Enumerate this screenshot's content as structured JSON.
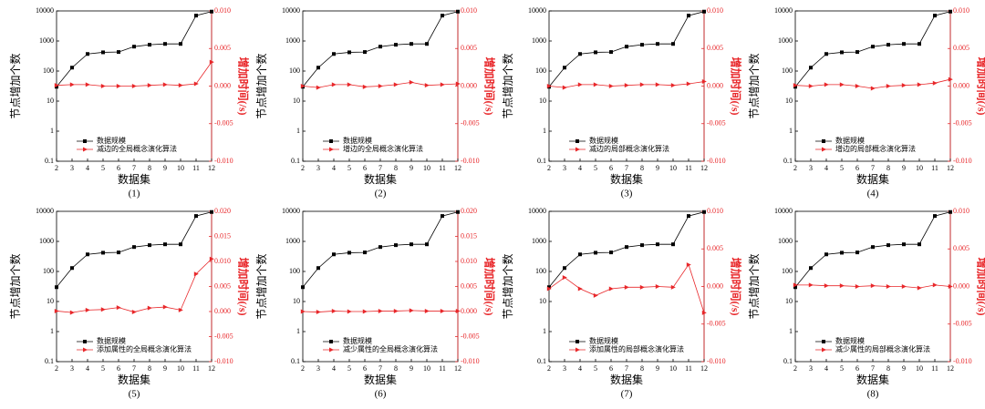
{
  "chart_data": [
    {
      "type": "line",
      "caption": "(1)",
      "xlabel": "数据集",
      "ylabel": "节点增加个数",
      "y2label": "增加时间(/s)",
      "log_y": true,
      "legend": "lower left",
      "x": [
        2,
        3,
        4,
        5,
        6,
        7,
        8,
        9,
        10,
        11,
        12
      ],
      "xlim": [
        2,
        12
      ],
      "xticks": [
        2,
        3,
        4,
        5,
        6,
        7,
        8,
        9,
        10,
        11,
        12
      ],
      "ylim": [
        0.1,
        10000
      ],
      "yticks": [
        0.1,
        1,
        10,
        100,
        1000,
        10000
      ],
      "y2lim": [
        -0.01,
        0.01
      ],
      "y2ticks": [
        {
          "value": -0.01,
          "label": "-0.010"
        },
        {
          "value": -0.005,
          "label": "-0.005"
        },
        {
          "value": 0,
          "label": "0.000"
        },
        {
          "value": 0.005,
          "label": "0.005"
        },
        {
          "value": 0.01,
          "label": "0.010"
        }
      ],
      "series": [
        {
          "name": "数据规模",
          "color": "#000000",
          "values": [
            30,
            130,
            370,
            420,
            430,
            650,
            750,
            800,
            800,
            7000,
            9500
          ]
        },
        {
          "name": "减边的全局概念演化算法",
          "color": "#e8272a",
          "axis": "y2",
          "values": [
            0.0001,
            0.0002,
            0.0002,
            0.0,
            0.0,
            0.0,
            0.0001,
            0.0002,
            0.0001,
            0.0003,
            0.0032
          ]
        }
      ]
    },
    {
      "type": "line",
      "caption": "(2)",
      "xlabel": "数据集",
      "ylabel": "节点增加个数",
      "y2label": "增加时间(/s)",
      "log_y": true,
      "legend": "lower left",
      "x": [
        2,
        3,
        4,
        5,
        6,
        7,
        8,
        9,
        10,
        11,
        12
      ],
      "xlim": [
        2,
        12
      ],
      "xticks": [
        2,
        3,
        4,
        5,
        6,
        7,
        8,
        9,
        10,
        11,
        12
      ],
      "ylim": [
        0.1,
        10000
      ],
      "yticks": [
        0.1,
        1,
        10,
        100,
        1000,
        10000
      ],
      "y2lim": [
        -0.01,
        0.01
      ],
      "y2ticks": [
        {
          "value": -0.01,
          "label": "-0.010"
        },
        {
          "value": -0.005,
          "label": "-0.005"
        },
        {
          "value": 0,
          "label": "0.000"
        },
        {
          "value": 0.005,
          "label": "0.005"
        },
        {
          "value": 0.01,
          "label": "0.010"
        }
      ],
      "series": [
        {
          "name": "数据规模",
          "color": "#000000",
          "values": [
            30,
            130,
            370,
            420,
            430,
            650,
            750,
            800,
            800,
            7000,
            9500
          ]
        },
        {
          "name": "增边的全局概念演化算法",
          "color": "#e8272a",
          "axis": "y2",
          "values": [
            0.0,
            -0.0002,
            0.0002,
            0.0002,
            -0.0001,
            0.0,
            0.0002,
            0.0005,
            0.0001,
            0.0002,
            0.0003
          ]
        }
      ]
    },
    {
      "type": "line",
      "caption": "(3)",
      "xlabel": "数据集",
      "ylabel": "节点增加个数",
      "y2label": "增加时间(/s)",
      "log_y": true,
      "legend": "lower left",
      "x": [
        2,
        3,
        4,
        5,
        6,
        7,
        8,
        9,
        10,
        11,
        12
      ],
      "xlim": [
        2,
        12
      ],
      "xticks": [
        2,
        3,
        4,
        5,
        6,
        7,
        8,
        9,
        10,
        11,
        12
      ],
      "ylim": [
        0.1,
        10000
      ],
      "yticks": [
        0.1,
        1,
        10,
        100,
        1000,
        10000
      ],
      "y2lim": [
        -0.01,
        0.01
      ],
      "y2ticks": [
        {
          "value": -0.01,
          "label": "-0.010"
        },
        {
          "value": -0.005,
          "label": "-0.005"
        },
        {
          "value": 0,
          "label": "0.000"
        },
        {
          "value": 0.005,
          "label": "0.005"
        },
        {
          "value": 0.01,
          "label": "0.010"
        }
      ],
      "series": [
        {
          "name": "数据规模",
          "color": "#000000",
          "values": [
            30,
            130,
            370,
            420,
            430,
            650,
            750,
            800,
            800,
            7000,
            9500
          ]
        },
        {
          "name": "减边的局部概念演化算法",
          "color": "#e8272a",
          "axis": "y2",
          "values": [
            0.0,
            -0.0002,
            0.0002,
            0.0002,
            0.0,
            0.0001,
            0.0002,
            0.0002,
            0.0001,
            0.0003,
            0.0006
          ]
        }
      ]
    },
    {
      "type": "line",
      "caption": "(4)",
      "xlabel": "数据集",
      "ylabel": "节点增加个数",
      "y2label": "增加时间(/s)",
      "log_y": true,
      "legend": "lower left",
      "x": [
        2,
        3,
        4,
        5,
        6,
        7,
        8,
        9,
        10,
        11,
        12
      ],
      "xlim": [
        2,
        12
      ],
      "xticks": [
        2,
        3,
        4,
        5,
        6,
        7,
        8,
        9,
        10,
        11,
        12
      ],
      "ylim": [
        0.1,
        10000
      ],
      "yticks": [
        0.1,
        1,
        10,
        100,
        1000,
        10000
      ],
      "y2lim": [
        -0.01,
        0.01
      ],
      "y2ticks": [
        {
          "value": -0.01,
          "label": "-0.010"
        },
        {
          "value": -0.005,
          "label": "-0.005"
        },
        {
          "value": 0,
          "label": "0.000"
        },
        {
          "value": 0.005,
          "label": "0.005"
        },
        {
          "value": 0.01,
          "label": "0.010"
        }
      ],
      "series": [
        {
          "name": "数据规模",
          "color": "#000000",
          "values": [
            30,
            130,
            370,
            420,
            430,
            650,
            750,
            800,
            800,
            7000,
            9500
          ]
        },
        {
          "name": "增边的局部概念演化算法",
          "color": "#e8272a",
          "axis": "y2",
          "values": [
            0.0001,
            0.0,
            0.0002,
            0.0002,
            0.0,
            -0.0003,
            0.0,
            0.0001,
            0.0002,
            0.0004,
            0.0009
          ]
        }
      ]
    },
    {
      "type": "line",
      "caption": "(5)",
      "xlabel": "数据集",
      "ylabel": "节点增加个数",
      "y2label": "增加时间(/s)",
      "log_y": true,
      "legend": "lower left",
      "x": [
        2,
        3,
        4,
        5,
        6,
        7,
        8,
        9,
        10,
        11,
        12
      ],
      "xlim": [
        2,
        12
      ],
      "xticks": [
        2,
        3,
        4,
        5,
        6,
        7,
        8,
        9,
        10,
        11,
        12
      ],
      "ylim": [
        0.1,
        10000
      ],
      "yticks": [
        0.1,
        1,
        10,
        100,
        1000,
        10000
      ],
      "y2lim": [
        -0.01,
        0.02
      ],
      "y2ticks": [
        {
          "value": -0.01,
          "label": "-0.010"
        },
        {
          "value": -0.005,
          "label": "-0.005"
        },
        {
          "value": 0,
          "label": "0.000"
        },
        {
          "value": 0.005,
          "label": "0.005"
        },
        {
          "value": 0.01,
          "label": "0.010"
        },
        {
          "value": 0.015,
          "label": "0.015"
        },
        {
          "value": 0.02,
          "label": "0.020"
        }
      ],
      "series": [
        {
          "name": "数据规模",
          "color": "#000000",
          "values": [
            30,
            130,
            370,
            420,
            430,
            650,
            750,
            800,
            800,
            7000,
            9500
          ]
        },
        {
          "name": "添加属性的全局概念演化算法",
          "color": "#e8272a",
          "axis": "y2",
          "values": [
            0.0001,
            -0.0002,
            0.0003,
            0.0004,
            0.0008,
            -0.0001,
            0.0007,
            0.0009,
            0.0003,
            0.0075,
            0.0105
          ]
        }
      ]
    },
    {
      "type": "line",
      "caption": "(6)",
      "xlabel": "数据集",
      "ylabel": "节点增加个数",
      "y2label": "增加时间(/s)",
      "log_y": true,
      "legend": "lower left",
      "x": [
        2,
        3,
        4,
        5,
        6,
        7,
        8,
        9,
        10,
        11,
        12
      ],
      "xlim": [
        2,
        12
      ],
      "xticks": [
        2,
        3,
        4,
        5,
        6,
        7,
        8,
        9,
        10,
        11,
        12
      ],
      "ylim": [
        0.1,
        10000
      ],
      "yticks": [
        0.1,
        1,
        10,
        100,
        1000,
        10000
      ],
      "y2lim": [
        -0.01,
        0.02
      ],
      "y2ticks": [
        {
          "value": -0.01,
          "label": "-0.010"
        },
        {
          "value": -0.005,
          "label": "-0.005"
        },
        {
          "value": 0,
          "label": "0.000"
        },
        {
          "value": 0.005,
          "label": "0.005"
        },
        {
          "value": 0.01,
          "label": "0.010"
        },
        {
          "value": 0.015,
          "label": "0.015"
        },
        {
          "value": 0.02,
          "label": "0.020"
        }
      ],
      "series": [
        {
          "name": "数据规模",
          "color": "#000000",
          "values": [
            30,
            130,
            370,
            420,
            430,
            650,
            750,
            800,
            800,
            7000,
            9500
          ]
        },
        {
          "name": "减少属性的全局概念演化算法",
          "color": "#e8272a",
          "axis": "y2",
          "values": [
            0.0,
            -0.0001,
            0.0001,
            0.0,
            0.0,
            0.0001,
            0.0001,
            0.0002,
            0.0001,
            0.0001,
            0.0001
          ]
        }
      ]
    },
    {
      "type": "line",
      "caption": "(7)",
      "xlabel": "数据集",
      "ylabel": "节点增加个数",
      "y2label": "增加时间(/s)",
      "log_y": true,
      "legend": "lower left",
      "x": [
        2,
        3,
        4,
        5,
        6,
        7,
        8,
        9,
        10,
        11,
        12
      ],
      "xlim": [
        2,
        12
      ],
      "xticks": [
        2,
        3,
        4,
        5,
        6,
        7,
        8,
        9,
        10,
        11,
        12
      ],
      "ylim": [
        0.1,
        10000
      ],
      "yticks": [
        0.1,
        1,
        10,
        100,
        1000,
        10000
      ],
      "y2lim": [
        -0.01,
        0.01
      ],
      "y2ticks": [
        {
          "value": -0.01,
          "label": "-0.010"
        },
        {
          "value": -0.005,
          "label": "-0.005"
        },
        {
          "value": 0,
          "label": "0.000"
        },
        {
          "value": 0.005,
          "label": "0.005"
        },
        {
          "value": 0.01,
          "label": "0.010"
        }
      ],
      "series": [
        {
          "name": "数据规模",
          "color": "#000000",
          "values": [
            30,
            130,
            370,
            420,
            430,
            650,
            750,
            800,
            800,
            7000,
            9500
          ]
        },
        {
          "name": "添加属性的局部概念演化算法",
          "color": "#e8272a",
          "axis": "y2",
          "values": [
            -0.0003,
            0.0012,
            -0.0003,
            -0.0012,
            -0.0003,
            -0.0001,
            -0.0001,
            0.0,
            -0.0001,
            0.0029,
            -0.0035
          ]
        }
      ]
    },
    {
      "type": "line",
      "caption": "(8)",
      "xlabel": "数据集",
      "ylabel": "节点增加个数",
      "y2label": "增加时间(/s)",
      "log_y": true,
      "legend": "lower left",
      "x": [
        2,
        3,
        4,
        5,
        6,
        7,
        8,
        9,
        10,
        11,
        12
      ],
      "xlim": [
        2,
        12
      ],
      "xticks": [
        2,
        3,
        4,
        5,
        6,
        7,
        8,
        9,
        10,
        11,
        12
      ],
      "ylim": [
        0.1,
        10000
      ],
      "yticks": [
        0.1,
        1,
        10,
        100,
        1000,
        10000
      ],
      "y2lim": [
        -0.01,
        0.01
      ],
      "y2ticks": [
        {
          "value": -0.01,
          "label": "-0.010"
        },
        {
          "value": -0.005,
          "label": "-0.005"
        },
        {
          "value": 0,
          "label": "0.000"
        },
        {
          "value": 0.005,
          "label": "0.005"
        },
        {
          "value": 0.01,
          "label": "0.010"
        }
      ],
      "series": [
        {
          "name": "数据规模",
          "color": "#000000",
          "values": [
            30,
            130,
            370,
            420,
            430,
            650,
            750,
            800,
            800,
            7000,
            9500
          ]
        },
        {
          "name": "减少属性的局部概念演化算法",
          "color": "#e8272a",
          "axis": "y2",
          "values": [
            0.0002,
            0.0002,
            0.0001,
            0.0001,
            0.0,
            0.0001,
            0.0,
            0.0,
            -0.0002,
            0.0002,
            0.0
          ]
        }
      ]
    }
  ]
}
